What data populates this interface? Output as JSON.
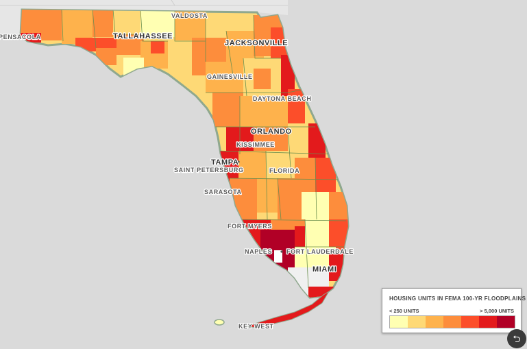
{
  "cities": {
    "valdosta": "VALDOSTA",
    "pensacola": "PENSACOLA",
    "tallahassee": "TALLAHASSEE",
    "jacksonville": "JACKSONVILLE",
    "gainesville": "GAINESVILLE",
    "daytona": "DAYTONA BEACH",
    "orlando": "ORLANDO",
    "kissimmee": "KISSIMMEE",
    "tampa": "TAMPA",
    "stpete": "SAINT PETERSBURG",
    "florida": "FLORIDA",
    "sarasota": "SARASOTA",
    "fortmyers": "FORT MYERS",
    "naples": "NAPLES",
    "ftlauderdale": "FORT LAUDERDALE",
    "miami": "MIAMI",
    "keywest": "KEY WEST"
  },
  "legend": {
    "title": "HOUSING UNITS IN FEMA 100-YR FLOODPLAINS",
    "low_label": "< 250 UNITS",
    "high_label": "> 5,000 UNITS",
    "colors": [
      "#ffffb2",
      "#fed976",
      "#feb24c",
      "#fd8d3c",
      "#fc4e2a",
      "#e31a1c",
      "#b10026"
    ]
  },
  "share_icon": "share-icon"
}
